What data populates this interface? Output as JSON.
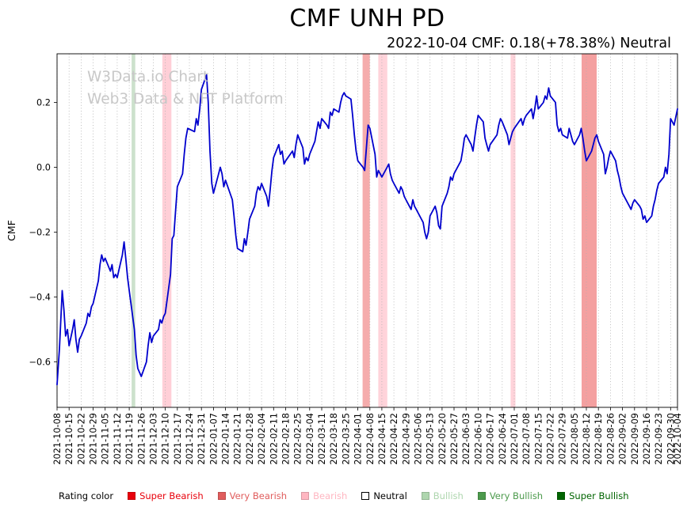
{
  "header": {
    "title": "CMF UNH PD",
    "subtitle": "2022-10-04 CMF: 0.18(+78.38%) Neutral"
  },
  "watermark": {
    "line1": "W3Data.io Chart",
    "line2": "Web3 Data & NFT Platform",
    "color": "#c8c8c8"
  },
  "legend": {
    "title": "Rating color",
    "items": [
      {
        "label": "Super Bearish",
        "color": "#e8000b"
      },
      {
        "label": "Very Bearish",
        "color": "#e05c5c"
      },
      {
        "label": "Bearish",
        "color": "#ffb6c1"
      },
      {
        "label": "Neutral",
        "color": "#ffffff",
        "text_color": "#000000",
        "border": true
      },
      {
        "label": "Bullish",
        "color": "#aed6ae"
      },
      {
        "label": "Very Bullish",
        "color": "#4c9a4c"
      },
      {
        "label": "Super Bullish",
        "color": "#006400"
      }
    ]
  },
  "chart_data": {
    "type": "line",
    "title": "CMF UNH PD",
    "subtitle": "2022-10-04 CMF: 0.18(+78.38%) Neutral",
    "xlabel": "",
    "ylabel": "CMF",
    "ylim": [
      -0.74,
      0.35
    ],
    "xlim": [
      0,
      51.571
    ],
    "x_unit": "weeks since 2021-10-08",
    "grid": "vertical dotted",
    "legend_position": "bottom",
    "line_color": "#0000cd",
    "y_ticks": [
      0.2,
      0.0,
      -0.2,
      -0.4,
      -0.6
    ],
    "x_tick_labels": [
      "2021-10-08",
      "2021-10-15",
      "2021-10-22",
      "2021-10-29",
      "2021-11-05",
      "2021-11-12",
      "2021-11-19",
      "2021-11-26",
      "2021-12-03",
      "2021-12-10",
      "2021-12-17",
      "2021-12-24",
      "2021-12-31",
      "2022-01-07",
      "2022-01-14",
      "2022-01-21",
      "2022-01-28",
      "2022-02-04",
      "2022-02-11",
      "2022-02-18",
      "2022-02-25",
      "2022-03-04",
      "2022-03-11",
      "2022-03-18",
      "2022-03-25",
      "2022-04-01",
      "2022-04-08",
      "2022-04-15",
      "2022-04-22",
      "2022-04-29",
      "2022-05-06",
      "2022-05-13",
      "2022-05-20",
      "2022-05-27",
      "2022-06-03",
      "2022-06-10",
      "2022-06-17",
      "2022-06-24",
      "2022-07-01",
      "2022-07-08",
      "2022-07-15",
      "2022-07-22",
      "2022-07-29",
      "2022-08-05",
      "2022-08-12",
      "2022-08-19",
      "2022-08-26",
      "2022-09-02",
      "2022-09-09",
      "2022-09-16",
      "2022-09-23",
      "2022-09-30",
      "2022-10-04"
    ],
    "last_point": {
      "date": "2022-10-04",
      "cmf": 0.18,
      "change_pct": 78.38,
      "rating": "Neutral"
    },
    "rating_bands": [
      {
        "rating": "Bullish",
        "start_week": 6.2,
        "end_week": 6.5,
        "color": "#8fbc8f",
        "opacity": 0.45
      },
      {
        "rating": "Bearish",
        "start_week": 8.75,
        "end_week": 9.5,
        "color": "#ffb6c1",
        "opacity": 0.65
      },
      {
        "rating": "Very Bearish",
        "start_week": 25.4,
        "end_week": 26.0,
        "color": "#f08080",
        "opacity": 0.65
      },
      {
        "rating": "Bearish",
        "start_week": 26.7,
        "end_week": 27.45,
        "color": "#ffb6c1",
        "opacity": 0.6
      },
      {
        "rating": "Bearish",
        "start_week": 37.7,
        "end_week": 38.1,
        "color": "#ffb6c1",
        "opacity": 0.6
      },
      {
        "rating": "Very Bearish",
        "start_week": 43.6,
        "end_week": 44.85,
        "color": "#f08080",
        "opacity": 0.75
      }
    ],
    "series": [
      {
        "name": "CMF",
        "points": [
          [
            0,
            -0.67
          ],
          [
            0.2,
            -0.56
          ],
          [
            0.43,
            -0.38
          ],
          [
            0.57,
            -0.44
          ],
          [
            0.71,
            -0.52
          ],
          [
            0.86,
            -0.5
          ],
          [
            1,
            -0.55
          ],
          [
            1.29,
            -0.5
          ],
          [
            1.43,
            -0.47
          ],
          [
            1.57,
            -0.53
          ],
          [
            1.71,
            -0.57
          ],
          [
            1.86,
            -0.53
          ],
          [
            2,
            -0.52
          ],
          [
            2.43,
            -0.48
          ],
          [
            2.57,
            -0.45
          ],
          [
            2.71,
            -0.46
          ],
          [
            2.86,
            -0.43
          ],
          [
            3,
            -0.42
          ],
          [
            3.43,
            -0.35
          ],
          [
            3.57,
            -0.3
          ],
          [
            3.71,
            -0.27
          ],
          [
            3.86,
            -0.29
          ],
          [
            4,
            -0.28
          ],
          [
            4.43,
            -0.32
          ],
          [
            4.57,
            -0.3
          ],
          [
            4.71,
            -0.34
          ],
          [
            4.86,
            -0.33
          ],
          [
            5,
            -0.34
          ],
          [
            5.43,
            -0.27
          ],
          [
            5.57,
            -0.23
          ],
          [
            5.71,
            -0.28
          ],
          [
            5.86,
            -0.34
          ],
          [
            6,
            -0.38
          ],
          [
            6.43,
            -0.5
          ],
          [
            6.57,
            -0.58
          ],
          [
            6.71,
            -0.62
          ],
          [
            7,
            -0.645
          ],
          [
            7.43,
            -0.6
          ],
          [
            7.57,
            -0.55
          ],
          [
            7.71,
            -0.51
          ],
          [
            7.86,
            -0.54
          ],
          [
            8,
            -0.52
          ],
          [
            8.43,
            -0.5
          ],
          [
            8.57,
            -0.47
          ],
          [
            8.71,
            -0.48
          ],
          [
            8.86,
            -0.46
          ],
          [
            9,
            -0.45
          ],
          [
            9.43,
            -0.33
          ],
          [
            9.57,
            -0.22
          ],
          [
            9.71,
            -0.21
          ],
          [
            9.86,
            -0.13
          ],
          [
            10,
            -0.06
          ],
          [
            10.43,
            -0.02
          ],
          [
            10.57,
            0.04
          ],
          [
            10.71,
            0.09
          ],
          [
            10.86,
            0.12
          ],
          [
            11.43,
            0.11
          ],
          [
            11.57,
            0.15
          ],
          [
            11.71,
            0.13
          ],
          [
            11.86,
            0.18
          ],
          [
            12,
            0.24
          ],
          [
            12.43,
            0.285
          ],
          [
            12.57,
            0.2
          ],
          [
            12.71,
            0.05
          ],
          [
            12.86,
            -0.05
          ],
          [
            13,
            -0.08
          ],
          [
            13.43,
            -0.02
          ],
          [
            13.57,
            0
          ],
          [
            13.71,
            -0.02
          ],
          [
            13.86,
            -0.06
          ],
          [
            14,
            -0.04
          ],
          [
            14.57,
            -0.1
          ],
          [
            14.71,
            -0.15
          ],
          [
            14.86,
            -0.21
          ],
          [
            15,
            -0.25
          ],
          [
            15.43,
            -0.26
          ],
          [
            15.57,
            -0.22
          ],
          [
            15.71,
            -0.24
          ],
          [
            15.86,
            -0.2
          ],
          [
            16,
            -0.16
          ],
          [
            16.43,
            -0.12
          ],
          [
            16.57,
            -0.08
          ],
          [
            16.71,
            -0.06
          ],
          [
            16.86,
            -0.07
          ],
          [
            17,
            -0.05
          ],
          [
            17.43,
            -0.09
          ],
          [
            17.57,
            -0.12
          ],
          [
            17.71,
            -0.07
          ],
          [
            17.86,
            -0.01
          ],
          [
            18,
            0.03
          ],
          [
            18.43,
            0.07
          ],
          [
            18.57,
            0.04
          ],
          [
            18.71,
            0.05
          ],
          [
            18.86,
            0.01
          ],
          [
            19,
            0.02
          ],
          [
            19.57,
            0.05
          ],
          [
            19.71,
            0.03
          ],
          [
            19.86,
            0.07
          ],
          [
            20,
            0.1
          ],
          [
            20.43,
            0.06
          ],
          [
            20.57,
            0.01
          ],
          [
            20.71,
            0.03
          ],
          [
            20.86,
            0.02
          ],
          [
            21,
            0.04
          ],
          [
            21.43,
            0.08
          ],
          [
            21.57,
            0.11
          ],
          [
            21.71,
            0.14
          ],
          [
            21.86,
            0.12
          ],
          [
            22,
            0.15
          ],
          [
            22.43,
            0.13
          ],
          [
            22.57,
            0.12
          ],
          [
            22.71,
            0.17
          ],
          [
            22.86,
            0.16
          ],
          [
            23,
            0.18
          ],
          [
            23.43,
            0.17
          ],
          [
            23.57,
            0.2
          ],
          [
            23.71,
            0.22
          ],
          [
            23.86,
            0.23
          ],
          [
            24,
            0.22
          ],
          [
            24.43,
            0.21
          ],
          [
            24.57,
            0.16
          ],
          [
            24.71,
            0.1
          ],
          [
            24.86,
            0.05
          ],
          [
            25,
            0.02
          ],
          [
            25.43,
            0
          ],
          [
            25.57,
            -0.01
          ],
          [
            25.71,
            0.06
          ],
          [
            25.86,
            0.13
          ],
          [
            26,
            0.12
          ],
          [
            26.43,
            0.04
          ],
          [
            26.57,
            -0.03
          ],
          [
            26.71,
            -0.01
          ],
          [
            26.86,
            -0.02
          ],
          [
            27,
            -0.03
          ],
          [
            27.43,
            0
          ],
          [
            27.57,
            0.01
          ],
          [
            27.71,
            -0.02
          ],
          [
            27.86,
            -0.04
          ],
          [
            28,
            -0.05
          ],
          [
            28.43,
            -0.08
          ],
          [
            28.57,
            -0.06
          ],
          [
            28.71,
            -0.07
          ],
          [
            28.86,
            -0.09
          ],
          [
            29,
            -0.1
          ],
          [
            29.43,
            -0.13
          ],
          [
            29.57,
            -0.1
          ],
          [
            29.71,
            -0.12
          ],
          [
            29.86,
            -0.13
          ],
          [
            30,
            -0.14
          ],
          [
            30.43,
            -0.17
          ],
          [
            30.57,
            -0.2
          ],
          [
            30.71,
            -0.22
          ],
          [
            30.86,
            -0.2
          ],
          [
            31,
            -0.15
          ],
          [
            31.43,
            -0.12
          ],
          [
            31.57,
            -0.14
          ],
          [
            31.71,
            -0.18
          ],
          [
            31.86,
            -0.19
          ],
          [
            32,
            -0.12
          ],
          [
            32.43,
            -0.08
          ],
          [
            32.57,
            -0.06
          ],
          [
            32.71,
            -0.03
          ],
          [
            32.86,
            -0.04
          ],
          [
            33,
            -0.02
          ],
          [
            33.57,
            0.02
          ],
          [
            33.71,
            0.05
          ],
          [
            33.86,
            0.09
          ],
          [
            34,
            0.1
          ],
          [
            34.43,
            0.07
          ],
          [
            34.57,
            0.05
          ],
          [
            34.71,
            0.09
          ],
          [
            34.86,
            0.13
          ],
          [
            35,
            0.16
          ],
          [
            35.43,
            0.14
          ],
          [
            35.57,
            0.09
          ],
          [
            35.71,
            0.07
          ],
          [
            35.86,
            0.05
          ],
          [
            36,
            0.07
          ],
          [
            36.57,
            0.1
          ],
          [
            36.71,
            0.13
          ],
          [
            36.86,
            0.15
          ],
          [
            37,
            0.14
          ],
          [
            37.43,
            0.1
          ],
          [
            37.57,
            0.07
          ],
          [
            37.71,
            0.09
          ],
          [
            37.86,
            0.11
          ],
          [
            38,
            0.12
          ],
          [
            38.57,
            0.15
          ],
          [
            38.71,
            0.13
          ],
          [
            38.86,
            0.15
          ],
          [
            39,
            0.16
          ],
          [
            39.43,
            0.18
          ],
          [
            39.57,
            0.15
          ],
          [
            39.71,
            0.18
          ],
          [
            39.86,
            0.22
          ],
          [
            40,
            0.18
          ],
          [
            40.43,
            0.2
          ],
          [
            40.57,
            0.22
          ],
          [
            40.71,
            0.21
          ],
          [
            40.86,
            0.245
          ],
          [
            41,
            0.22
          ],
          [
            41.43,
            0.2
          ],
          [
            41.57,
            0.13
          ],
          [
            41.71,
            0.11
          ],
          [
            41.86,
            0.12
          ],
          [
            42,
            0.1
          ],
          [
            42.43,
            0.09
          ],
          [
            42.57,
            0.12
          ],
          [
            42.71,
            0.1
          ],
          [
            42.86,
            0.08
          ],
          [
            43,
            0.07
          ],
          [
            43.43,
            0.1
          ],
          [
            43.57,
            0.12
          ],
          [
            43.71,
            0.09
          ],
          [
            43.86,
            0.05
          ],
          [
            44,
            0.02
          ],
          [
            44.43,
            0.05
          ],
          [
            44.57,
            0.07
          ],
          [
            44.71,
            0.09
          ],
          [
            44.86,
            0.1
          ],
          [
            45,
            0.08
          ],
          [
            45.43,
            0.04
          ],
          [
            45.57,
            -0.02
          ],
          [
            45.71,
            0
          ],
          [
            45.86,
            0.03
          ],
          [
            46,
            0.05
          ],
          [
            46.43,
            0.02
          ],
          [
            46.57,
            -0.01
          ],
          [
            46.71,
            -0.03
          ],
          [
            46.86,
            -0.06
          ],
          [
            47,
            -0.08
          ],
          [
            47.57,
            -0.12
          ],
          [
            47.71,
            -0.13
          ],
          [
            47.86,
            -0.11
          ],
          [
            48,
            -0.1
          ],
          [
            48.43,
            -0.12
          ],
          [
            48.57,
            -0.13
          ],
          [
            48.71,
            -0.16
          ],
          [
            48.86,
            -0.15
          ],
          [
            49,
            -0.17
          ],
          [
            49.43,
            -0.15
          ],
          [
            49.57,
            -0.12
          ],
          [
            49.71,
            -0.1
          ],
          [
            49.86,
            -0.07
          ],
          [
            50,
            -0.05
          ],
          [
            50.43,
            -0.03
          ],
          [
            50.57,
            0
          ],
          [
            50.71,
            -0.02
          ],
          [
            50.86,
            0.04
          ],
          [
            51,
            0.15
          ],
          [
            51.29,
            0.13
          ],
          [
            51.571,
            0.18
          ]
        ]
      }
    ]
  }
}
